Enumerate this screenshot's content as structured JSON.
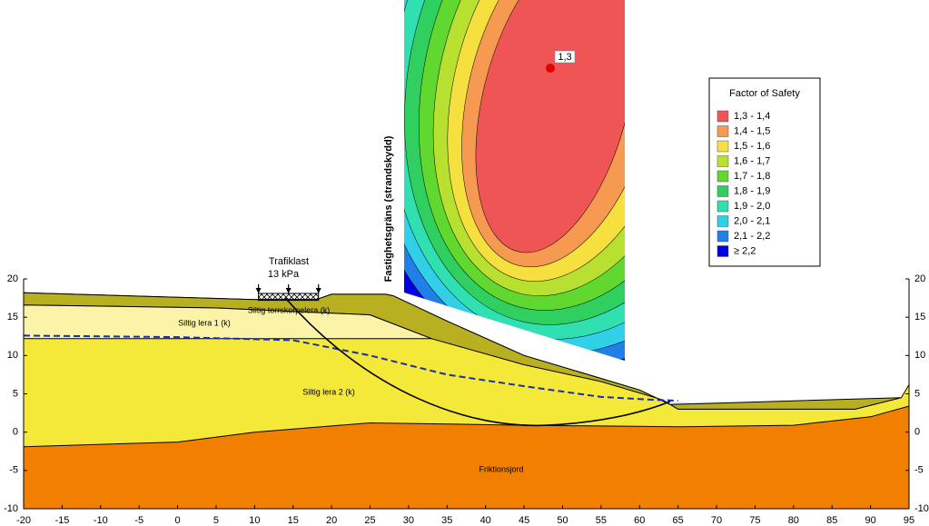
{
  "axes": {
    "xlim": [
      -20,
      95
    ],
    "ylim": [
      -10,
      20
    ],
    "xticks": [
      -20,
      -15,
      -10,
      -5,
      0,
      5,
      10,
      15,
      20,
      25,
      30,
      35,
      40,
      45,
      50,
      55,
      60,
      65,
      70,
      75,
      80,
      85,
      90,
      95
    ],
    "yticks": [
      -10,
      -5,
      0,
      5,
      10,
      15,
      20
    ]
  },
  "load": {
    "label": "Trafiklast",
    "magnitude": "13 kPa"
  },
  "layers": [
    {
      "name": "Siltig torrskorpelera (k)",
      "color": "#b8b020"
    },
    {
      "name": "Siltig lera 1 (k)",
      "color": "#fbf4a8"
    },
    {
      "name": "Siltig lera 2 (k)",
      "color": "#f4e838"
    },
    {
      "name": "Friktionsjord",
      "color": "#f28000"
    }
  ],
  "boundary_label": "Fastighetsgräns (strandskydd)",
  "critical_surface": {
    "label": "1,3"
  },
  "legend": {
    "title": "Factor of Safety",
    "entries": [
      {
        "label": "1,3 - 1,4",
        "color": "#f05555"
      },
      {
        "label": "1,4 - 1,5",
        "color": "#f59a50"
      },
      {
        "label": "1,5 - 1,6",
        "color": "#f5e040"
      },
      {
        "label": "1,6 - 1,7",
        "color": "#b8e030"
      },
      {
        "label": "1,7 - 1,8",
        "color": "#60d830"
      },
      {
        "label": "1,8 - 1,9",
        "color": "#30d060"
      },
      {
        "label": "1,9 - 2,0",
        "color": "#30e0b0"
      },
      {
        "label": "2,0 - 2,1",
        "color": "#30d0e8"
      },
      {
        "label": "2,1 - 2,2",
        "color": "#2080e8"
      },
      {
        "label": "≥ 2,2",
        "color": "#0000e0"
      }
    ]
  }
}
